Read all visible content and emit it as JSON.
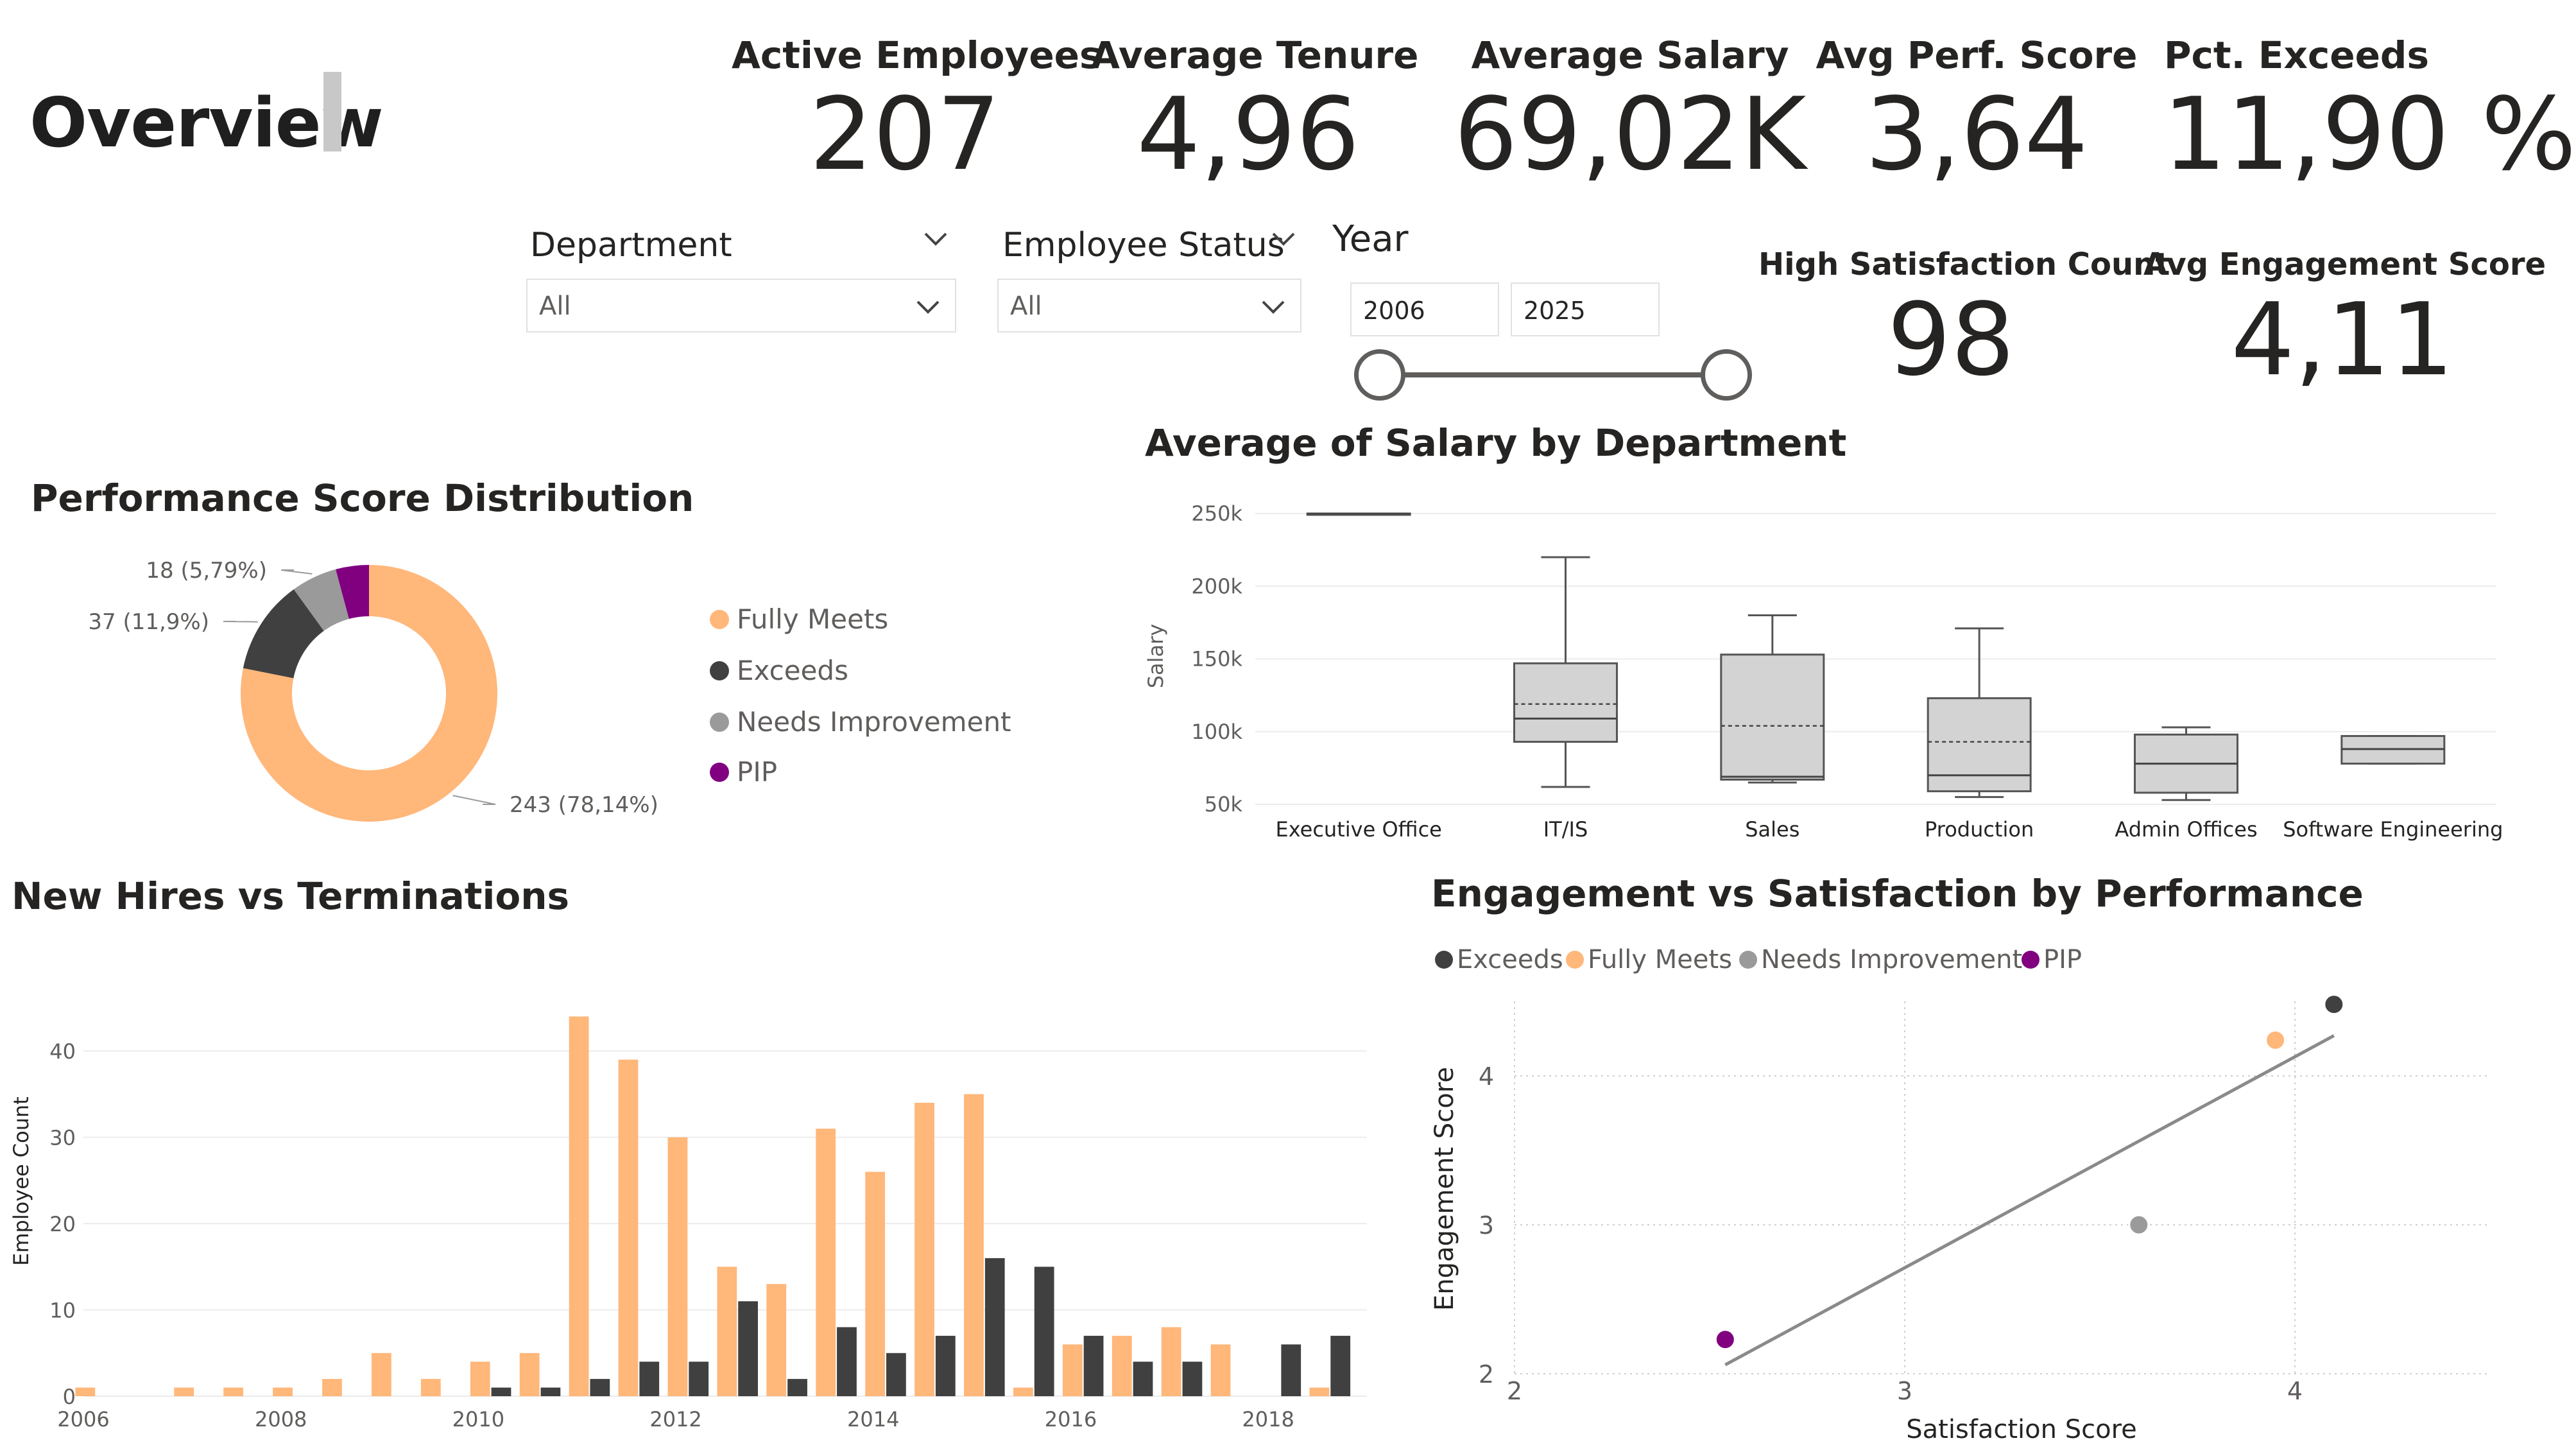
{
  "page": {
    "title": "Overview"
  },
  "kpis": [
    {
      "label": "Active Employees",
      "value": "207"
    },
    {
      "label": "Average Tenure",
      "value": "4,96"
    },
    {
      "label": "Average Salary",
      "value": "69,02K"
    },
    {
      "label": "Avg Perf. Score",
      "value": "3,64"
    },
    {
      "label": "Pct. Exceeds",
      "value": "11,90 %"
    }
  ],
  "kpis_secondary": [
    {
      "label": "High Satisfaction Count",
      "value": "98"
    },
    {
      "label": "Avg Engagement Score",
      "value": "4,11"
    }
  ],
  "slicers": {
    "department": {
      "title": "Department",
      "value": "All"
    },
    "status": {
      "title": "Employee Status",
      "value": "All"
    },
    "year": {
      "title": "Year",
      "start": "2006",
      "end": "2025"
    }
  },
  "colors": {
    "fully_meets": "#FFB77A",
    "exceeds": "#404040",
    "needs_improvement": "#9A9A9A",
    "pip": "#800080",
    "box_fill": "#D3D3D3",
    "trend": "#8A8A8A"
  },
  "chart_data": [
    {
      "id": "performance",
      "type": "pie",
      "title": "Performance Score Distribution",
      "slices": [
        {
          "name": "Fully Meets",
          "value": 243,
          "label": "243 (78,14%)"
        },
        {
          "name": "Exceeds",
          "value": 37,
          "label": "37 (11,9%)"
        },
        {
          "name": "Needs Improvement",
          "value": 18,
          "label": "18 (5,79%)"
        },
        {
          "name": "PIP",
          "value": 13
        }
      ],
      "legend": [
        "Fully Meets",
        "Exceeds",
        "Needs Improvement",
        "PIP"
      ],
      "legend_position": "right"
    },
    {
      "id": "salary",
      "type": "box",
      "title": "Average of Salary by Department",
      "ylabel": "Salary",
      "xlabel": "",
      "ylim": [
        50000,
        250000
      ],
      "yticks": [
        "50k",
        "100k",
        "150k",
        "200k",
        "250k"
      ],
      "categories": [
        "Executive Office",
        "IT/IS",
        "Sales",
        "Production",
        "Admin Offices",
        "Software Engineering"
      ],
      "boxes": [
        {
          "min": 250000,
          "q1": 250000,
          "median": 250000,
          "q3": 250000,
          "max": 250000,
          "mean": 250000
        },
        {
          "min": 62000,
          "q1": 93000,
          "median": 109000,
          "q3": 147000,
          "max": 220000,
          "mean": 119000
        },
        {
          "min": 65000,
          "q1": 67000,
          "median": 69000,
          "q3": 153000,
          "max": 180000,
          "mean": 104000
        },
        {
          "min": 55000,
          "q1": 59000,
          "median": 70000,
          "q3": 123000,
          "max": 171000,
          "mean": 93000
        },
        {
          "min": 53000,
          "q1": 58000,
          "median": 78000,
          "q3": 98000,
          "max": 103000,
          "mean": 78000
        },
        {
          "min": 78000,
          "q1": 78000,
          "median": 88000,
          "q3": 97000,
          "max": 97000,
          "mean": 88000
        }
      ],
      "grid": true
    },
    {
      "id": "hires",
      "type": "bar",
      "title": "New Hires vs Terminations",
      "ylabel": "Employee Count",
      "xlabel": "",
      "ylim": [
        0,
        45
      ],
      "yticks": [
        0,
        10,
        20,
        30,
        40
      ],
      "xticks": [
        "2006",
        "2008",
        "2010",
        "2012",
        "2014",
        "2016",
        "2018"
      ],
      "xticks_at": [
        2006,
        2008,
        2010,
        2012,
        2014,
        2016,
        2018
      ],
      "x_range": [
        2006,
        2019
      ],
      "periods": [
        2006.0,
        2006.5,
        2007.0,
        2007.5,
        2008.0,
        2008.5,
        2009.0,
        2009.5,
        2010.0,
        2010.5,
        2011.0,
        2011.5,
        2012.0,
        2012.5,
        2013.0,
        2013.5,
        2014.0,
        2014.5,
        2015.0,
        2015.5,
        2016.0,
        2016.5,
        2017.0,
        2017.5,
        2018.0,
        2018.5
      ],
      "series": [
        {
          "name": "New Hires",
          "values": [
            1,
            0,
            1,
            1,
            1,
            2,
            5,
            2,
            4,
            5,
            44,
            39,
            30,
            15,
            13,
            31,
            26,
            34,
            35,
            1,
            6,
            7,
            8,
            6,
            0,
            1
          ]
        },
        {
          "name": "Terminations",
          "values": [
            0,
            0,
            0,
            0,
            0,
            0,
            0,
            0,
            1,
            1,
            2,
            4,
            4,
            11,
            2,
            8,
            5,
            7,
            16,
            15,
            7,
            4,
            4,
            0,
            6,
            7
          ]
        }
      ],
      "grid": true
    },
    {
      "id": "engagement",
      "type": "scatter",
      "title": "Engagement vs Satisfaction by Performance",
      "xlabel": "Satisfaction Score",
      "ylabel": "Engagement Score",
      "xlim": [
        2,
        4.5
      ],
      "ylim": [
        2,
        4.5
      ],
      "xticks": [
        2,
        3,
        4
      ],
      "yticks": [
        2,
        3,
        4
      ],
      "points": [
        {
          "name": "Exceeds",
          "x": 4.1,
          "y": 4.48
        },
        {
          "name": "Fully Meets",
          "x": 3.95,
          "y": 4.24
        },
        {
          "name": "Needs Improvement",
          "x": 3.6,
          "y": 3.0
        },
        {
          "name": "PIP",
          "x": 2.54,
          "y": 2.23
        }
      ],
      "trendline": {
        "x1": 2.54,
        "y1": 2.06,
        "x2": 4.1,
        "y2": 4.27
      },
      "legend": [
        "Exceeds",
        "Fully Meets",
        "Needs Improvement",
        "PIP"
      ],
      "legend_position": "top-left",
      "grid": true
    }
  ]
}
